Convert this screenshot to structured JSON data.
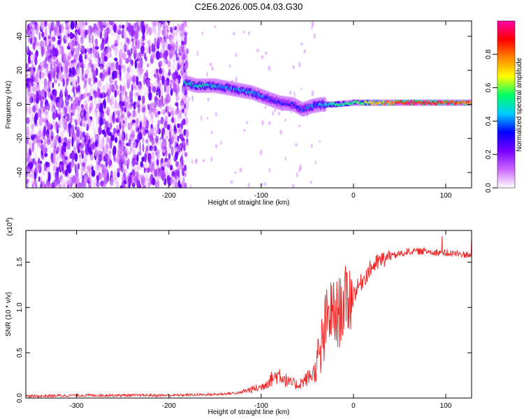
{
  "title": "C2E6.2026.005.04.03.G30",
  "chart_data": [
    {
      "type": "heatmap",
      "xlabel": "Height of straight line (km)",
      "ylabel": "Frequency (Hz)",
      "xlim": [
        -355,
        128
      ],
      "ylim": [
        -49,
        49
      ],
      "xticks": [
        -300,
        -200,
        -100,
        0,
        100
      ],
      "xtick_labels": [
        "-300",
        "-200",
        "-100",
        "0",
        "100"
      ],
      "yticks": [
        -40,
        -20,
        0,
        20,
        40
      ],
      "ytick_labels": [
        "-40",
        "-20",
        "0",
        "20",
        "40"
      ],
      "colorbar": {
        "label": "Normalized spectral amplitude",
        "range": [
          0,
          1
        ],
        "ticks": [
          0.0,
          0.2,
          0.4,
          0.6,
          0.8
        ],
        "tick_labels": [
          "0.0",
          "0.2",
          "0.4",
          "0.6",
          "0.8"
        ],
        "colors": [
          "#ffffff",
          "#cc66ff",
          "#7700ff",
          "#0000ff",
          "#00ccff",
          "#00ff66",
          "#ffff00",
          "#ff8800",
          "#ff0000",
          "#ff00aa"
        ]
      },
      "ridge": {
        "x": [
          -183,
          -170,
          -150,
          -130,
          -110,
          -95,
          -80,
          -65,
          -55,
          -45,
          -35,
          -20,
          0,
          20,
          60,
          90,
          110,
          128
        ],
        "y": [
          13,
          11,
          11,
          9,
          7,
          4,
          1,
          0,
          -3,
          -1,
          0,
          0,
          1,
          1,
          1,
          1,
          1,
          1
        ],
        "amplitude": [
          0.45,
          0.5,
          0.45,
          0.4,
          0.45,
          0.35,
          0.3,
          0.3,
          0.35,
          0.4,
          0.45,
          0.5,
          0.55,
          0.65,
          0.9,
          0.85,
          0.85,
          0.8
        ]
      },
      "noise_region_x": [
        -355,
        -185
      ]
    },
    {
      "type": "line",
      "xlabel": "Height of straight line (km)",
      "ylabel": "SNR (10 * v/v)",
      "y_multiplier_label": "(x10",
      "y_multiplier_exp": "4",
      "y_multiplier_close": ")",
      "xlim": [
        -355,
        128
      ],
      "ylim": [
        0,
        1.85
      ],
      "xticks": [
        -300,
        -200,
        -100,
        0,
        100
      ],
      "xtick_labels": [
        "-300",
        "-200",
        "-100",
        "0",
        "100"
      ],
      "yticks": [
        0.0,
        0.5,
        1.0,
        1.5
      ],
      "ytick_labels": [
        "0.0",
        "0.5",
        "1.0",
        "1.5"
      ],
      "series": [
        {
          "color": "#ee2222",
          "x": [
            -355,
            -300,
            -250,
            -200,
            -150,
            -120,
            -100,
            -90,
            -80,
            -70,
            -60,
            -50,
            -40,
            -35,
            -30,
            -25,
            -20,
            -15,
            -10,
            -5,
            0,
            10,
            20,
            30,
            40,
            60,
            80,
            100,
            128
          ],
          "y": [
            0.02,
            0.03,
            0.03,
            0.03,
            0.04,
            0.06,
            0.1,
            0.17,
            0.22,
            0.14,
            0.12,
            0.18,
            0.26,
            0.5,
            0.8,
            0.95,
            0.9,
            0.95,
            1.05,
            1.1,
            1.15,
            1.3,
            1.45,
            1.52,
            1.56,
            1.62,
            1.62,
            1.6,
            1.58
          ]
        }
      ]
    }
  ]
}
